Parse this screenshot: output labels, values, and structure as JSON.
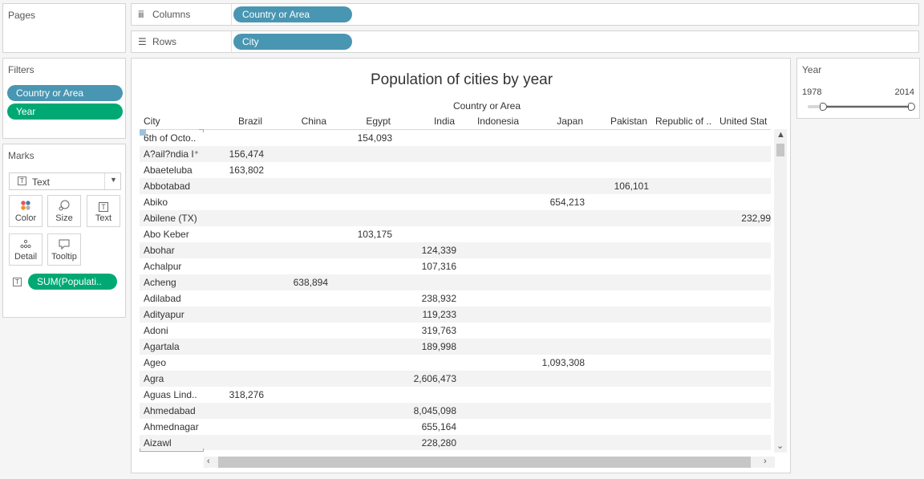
{
  "pages": {
    "title": "Pages"
  },
  "filters": {
    "title": "Filters",
    "items": [
      "Country or Area",
      "Year"
    ]
  },
  "marks": {
    "title": "Marks",
    "type": "Text",
    "cards": {
      "color": "Color",
      "size": "Size",
      "text": "Text",
      "detail": "Detail",
      "tooltip": "Tooltip"
    },
    "field": "SUM(Populati.."
  },
  "columns": {
    "label": "Columns",
    "pill": "Country or Area"
  },
  "rows": {
    "label": "Rows",
    "pill": "City"
  },
  "year_filter": {
    "title": "Year",
    "min": "1978",
    "max": "2014",
    "low": 1978,
    "high": 2014
  },
  "viz": {
    "title": "Population of cities by year",
    "column_caption": "Country or Area",
    "city_header": "City",
    "countries": [
      "Brazil",
      "China",
      "Egypt",
      "India",
      "Indonesia",
      "Japan",
      "Pakistan",
      "Republic of ..",
      "United Stat"
    ],
    "rows": [
      {
        "city": "6th of Octo..",
        "values": [
          "",
          "",
          "154,093",
          "",
          "",
          "",
          "",
          "",
          ""
        ]
      },
      {
        "city": "A?ail?ndia I⁺",
        "values": [
          "156,474",
          "",
          "",
          "",
          "",
          "",
          "",
          "",
          ""
        ]
      },
      {
        "city": "Abaeteluba",
        "values": [
          "163,802",
          "",
          "",
          "",
          "",
          "",
          "",
          "",
          ""
        ]
      },
      {
        "city": "Abbotabad",
        "values": [
          "",
          "",
          "",
          "",
          "",
          "",
          "106,101",
          "",
          ""
        ]
      },
      {
        "city": "Abiko",
        "values": [
          "",
          "",
          "",
          "",
          "",
          "654,213",
          "",
          "",
          ""
        ]
      },
      {
        "city": "Abilene (TX)",
        "values": [
          "",
          "",
          "",
          "",
          "",
          "",
          "",
          "",
          "232,99"
        ]
      },
      {
        "city": "Abo Keber",
        "values": [
          "",
          "",
          "103,175",
          "",
          "",
          "",
          "",
          "",
          ""
        ]
      },
      {
        "city": "Abohar",
        "values": [
          "",
          "",
          "",
          "124,339",
          "",
          "",
          "",
          "",
          ""
        ]
      },
      {
        "city": "Achalpur",
        "values": [
          "",
          "",
          "",
          "107,316",
          "",
          "",
          "",
          "",
          ""
        ]
      },
      {
        "city": "Acheng",
        "values": [
          "",
          "638,894",
          "",
          "",
          "",
          "",
          "",
          "",
          ""
        ]
      },
      {
        "city": "Adilabad",
        "values": [
          "",
          "",
          "",
          "238,932",
          "",
          "",
          "",
          "",
          ""
        ]
      },
      {
        "city": "Adityapur",
        "values": [
          "",
          "",
          "",
          "119,233",
          "",
          "",
          "",
          "",
          ""
        ]
      },
      {
        "city": "Adoni",
        "values": [
          "",
          "",
          "",
          "319,763",
          "",
          "",
          "",
          "",
          ""
        ]
      },
      {
        "city": "Agartala",
        "values": [
          "",
          "",
          "",
          "189,998",
          "",
          "",
          "",
          "",
          ""
        ]
      },
      {
        "city": "Ageo",
        "values": [
          "",
          "",
          "",
          "",
          "",
          "1,093,308",
          "",
          "",
          ""
        ]
      },
      {
        "city": "Agra",
        "values": [
          "",
          "",
          "",
          "2,606,473",
          "",
          "",
          "",
          "",
          ""
        ]
      },
      {
        "city": "Aguas Lind..",
        "values": [
          "318,276",
          "",
          "",
          "",
          "",
          "",
          "",
          "",
          ""
        ]
      },
      {
        "city": "Ahmedabad",
        "values": [
          "",
          "",
          "",
          "8,045,098",
          "",
          "",
          "",
          "",
          ""
        ]
      },
      {
        "city": "Ahmednagar",
        "values": [
          "",
          "",
          "",
          "655,164",
          "",
          "",
          "",
          "",
          ""
        ]
      },
      {
        "city": "Aizawl",
        "values": [
          "",
          "",
          "",
          "228,280",
          "",
          "",
          "",
          "",
          ""
        ]
      }
    ]
  }
}
